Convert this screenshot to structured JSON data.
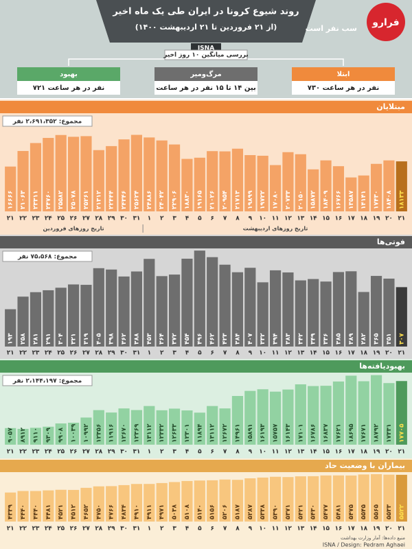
{
  "header": {
    "title": "روند شیوع کرونا در ایران طی یک ماه اخیر",
    "subtitle": "(از ۲۱ فروردین تا ۲۱ اردیبهشت ۱۴۰۰)",
    "source_tag": "ISNA",
    "note": "سب نفر است",
    "logo": "فرارو",
    "summary_title": "بررسی میانگین ۱۰ روز اخیر",
    "boxes": [
      {
        "label": "بهبود",
        "text": "۷۲۱ نفر در هر ساعت"
      },
      {
        "label": "مرگ‌ومیر",
        "text": "بین ۱۴ تا ۱۵ نفر در هر ساعت"
      },
      {
        "label": "ابتلا",
        "text": "۷۳۰ نفر در هر ساعت"
      }
    ]
  },
  "chart_data": [
    {
      "type": "bar",
      "title": "مبتلایان",
      "total": "مجموع: ۲،۶۹۱،۳۵۲ نفر",
      "categories": [
        "۲۱",
        "۲۲",
        "۲۳",
        "۲۴",
        "۲۵",
        "۲۶",
        "۲۷",
        "۲۸",
        "۲۹",
        "۳۰",
        "۳۱",
        "۱",
        "۲",
        "۳",
        "۴",
        "۵",
        "۶",
        "۷",
        "۸",
        "۹",
        "۱۰",
        "۱۱",
        "۱۲",
        "۱۳",
        "۱۴",
        "۱۵",
        "۱۶",
        "۱۷",
        "۱۸",
        "۱۹",
        "۲۰",
        "۲۱"
      ],
      "x_group_labels": [
        "تاریخ روزهای فروردین",
        "تاریخ روزهای اردیبهشت"
      ],
      "values": [
        16666,
        21063,
        23311,
        24760,
        25582,
        25078,
        25261,
        21312,
        22444,
        24346,
        25624,
        24886,
        24042,
        22906,
        18830,
        19165,
        21026,
        20954,
        21713,
        19899,
        19722,
        17080,
        20733,
        20150,
        15872,
        18409,
        16766,
        13587,
        14141,
        17430,
        18408,
        18133
      ],
      "value_labels": [
        "۱۶۶۶۶",
        "۲۱۰۶۳",
        "۲۳۳۱۱",
        "۲۴۷۶۰",
        "۲۵۵۸۲",
        "۲۵۰۷۸",
        "۲۵۲۶۱",
        "۲۱۳۱۲",
        "۲۲۴۴۴",
        "۲۴۳۴۶",
        "۲۵۶۲۴",
        "۲۴۸۸۶",
        "۲۴۰۴۲",
        "۲۲۹۰۶",
        "۱۸۸۳۰",
        "۱۹۱۶۵",
        "۲۱۰۲۶",
        "۲۰۹۵۴",
        "۲۱۷۱۳",
        "۱۹۸۹۹",
        "۱۹۷۲۲",
        "۱۷۰۸۰",
        "۲۰۷۳۳",
        "۲۰۱۵۰",
        "۱۵۸۷۲",
        "۱۸۴۰۹",
        "۱۶۷۶۶",
        "۱۳۵۸۷",
        "۱۴۱۴۱",
        "۱۷۴۳۰",
        "۱۸۴۰۸",
        "۱۸۱۳۳"
      ],
      "color": "#f4a366",
      "highlight_color": "#b86f1c",
      "label_color": "#ffffff",
      "background": "#fce3cc",
      "band_color": "#f08a3c",
      "ylim": [
        4000,
        26500
      ]
    },
    {
      "type": "bar",
      "title": "فوتی‌ها",
      "total": "مجموع: ۷۵،۵۶۸ نفر",
      "categories": [
        "۲۱",
        "۲۲",
        "۲۳",
        "۲۴",
        "۲۵",
        "۲۶",
        "۲۷",
        "۲۸",
        "۲۹",
        "۳۰",
        "۳۱",
        "۱",
        "۲",
        "۳",
        "۴",
        "۵",
        "۶",
        "۷",
        "۸",
        "۹",
        "۱۰",
        "۱۱",
        "۱۲",
        "۱۳",
        "۱۴",
        "۱۵",
        "۱۶",
        "۱۷",
        "۱۸",
        "۱۹",
        "۲۰",
        "۲۱"
      ],
      "values": [
        193,
        258,
        281,
        291,
        304,
        321,
        319,
        405,
        398,
        362,
        388,
        453,
        364,
        372,
        454,
        496,
        462,
        423,
        384,
        407,
        332,
        394,
        383,
        342,
        349,
        336,
        385,
        389,
        282,
        365,
        351,
        307
      ],
      "value_labels": [
        "۱۹۳",
        "۲۵۸",
        "۲۸۱",
        "۲۹۱",
        "۳۰۴",
        "۳۲۱",
        "۳۱۹",
        "۴۰۵",
        "۳۹۸",
        "۳۶۲",
        "۳۸۸",
        "۴۵۳",
        "۳۶۴",
        "۳۷۲",
        "۴۵۴",
        "۴۹۶",
        "۴۶۲",
        "۴۲۳",
        "۳۸۴",
        "۴۰۷",
        "۳۳۲",
        "۳۹۴",
        "۳۸۳",
        "۳۴۲",
        "۳۴۹",
        "۳۳۶",
        "۳۸۵",
        "۳۸۹",
        "۲۸۲",
        "۳۶۵",
        "۳۵۱",
        "۳۰۷"
      ],
      "color": "#6e6e6e",
      "highlight_color": "#3a3a3a",
      "label_color": "#ffffff",
      "background": "#d6d6d6",
      "band_color": "#5a5a5a",
      "ylim": [
        0,
        500
      ]
    },
    {
      "type": "bar",
      "title": "بهبودیافته‌ها",
      "total": "مجموع: ۲،۱۴۴،۱۹۷ نفر",
      "categories": [
        "۲۱",
        "۲۲",
        "۲۳",
        "۲۴",
        "۲۵",
        "۲۶",
        "۲۷",
        "۲۸",
        "۲۹",
        "۳۰",
        "۳۱",
        "۱",
        "۲",
        "۳",
        "۴",
        "۵",
        "۶",
        "۷",
        "۸",
        "۹",
        "۱۰",
        "۱۱",
        "۱۲",
        "۱۳",
        "۱۴",
        "۱۵",
        "۱۶",
        "۱۷",
        "۱۸",
        "۱۹",
        "۲۰",
        "۲۱"
      ],
      "values": [
        9057,
        8912,
        9110,
        9309,
        9908,
        10039,
        10992,
        12356,
        11916,
        12670,
        12369,
        13112,
        12332,
        12633,
        12301,
        11894,
        13112,
        12672,
        14961,
        15891,
        16193,
        15757,
        16143,
        17101,
        16786,
        16837,
        17621,
        18695,
        17671,
        18792,
        17331,
        17705
      ],
      "value_labels": [
        "۹۰۵۷",
        "۸۹۱۲",
        "۹۱۱۰",
        "۹۳۰۹",
        "۹۹۰۸",
        "۱۰۰۳۹",
        "۱۰۹۹۲",
        "۱۲۳۵۶",
        "۱۱۹۱۶",
        "۱۲۶۷۰",
        "۱۲۳۶۹",
        "۱۳۱۱۲",
        "۱۲۳۳۲",
        "۱۲۶۳۳",
        "۱۲۳۰۱",
        "۱۱۸۹۴",
        "۱۳۱۱۲",
        "۱۲۶۷۲",
        "۱۴۹۶۱",
        "۱۵۸۹۱",
        "۱۶۱۹۳",
        "۱۵۷۵۷",
        "۱۶۱۴۳",
        "۱۷۱۰۱",
        "۱۶۷۸۶",
        "۱۶۸۳۷",
        "۱۷۶۲۱",
        "۱۸۶۹۵",
        "۱۷۶۷۱",
        "۱۸۷۹۲",
        "۱۷۳۳۱",
        "۱۷۷۰۵"
      ],
      "color": "#92d2a2",
      "highlight_color": "#4e9a5c",
      "label_color": "#244d2c",
      "background": "#dcefe1",
      "band_color": "#4e9a5c",
      "ylim": [
        6000,
        19000
      ]
    },
    {
      "type": "bar",
      "title": "بیماران با وضعیت حاد",
      "categories": [
        "۲۱",
        "۲۲",
        "۲۳",
        "۲۴",
        "۲۵",
        "۲۶",
        "۲۷",
        "۲۸",
        "۲۹",
        "۳۰",
        "۳۱",
        "۱",
        "۲",
        "۳",
        "۴",
        "۵",
        "۶",
        "۷",
        "۸",
        "۹",
        "۱۰",
        "۱۱",
        "۱۲",
        "۱۳",
        "۱۴",
        "۱۵",
        "۱۶",
        "۱۷",
        "۱۸",
        "۱۹",
        "۲۰",
        "۲۱"
      ],
      "values": [
        4339,
        4440,
        4440,
        4481,
        4521,
        4512,
        4652,
        4750,
        4766,
        4834,
        4910,
        4911,
        4971,
        5038,
        5108,
        5140,
        5156,
        5206,
        5187,
        5287,
        5338,
        5390,
        5371,
        5421,
        5430,
        5477,
        5481,
        5475,
        5545,
        5565,
        5533,
        5522
      ],
      "value_labels": [
        "۴۳۳۹",
        "۴۴۴۰",
        "۴۴۴۰",
        "۴۴۸۱",
        "۴۵۲۱",
        "۴۵۱۲",
        "۴۶۵۲",
        "۴۷۵۰",
        "۴۷۶۶",
        "۴۸۳۴",
        "۴۹۱۰",
        "۴۹۱۱",
        "۴۹۷۱",
        "۵۰۳۸",
        "۵۱۰۸",
        "۵۱۴۰",
        "۵۱۵۶",
        "۵۲۰۶",
        "۵۱۸۷",
        "۵۲۸۷",
        "۵۳۳۸",
        "۵۳۹۰",
        "۵۳۷۱",
        "۵۴۲۱",
        "۵۴۳۰",
        "۵۴۷۷",
        "۵۴۸۱",
        "۵۴۷۵",
        "۵۵۴۵",
        "۵۵۶۵",
        "۵۵۳۳",
        "۵۵۲۲"
      ],
      "color": "#f8c67e",
      "highlight_color": "#d99a3c",
      "label_color": "#5a3a16",
      "background": "#fbeed7",
      "band_color": "#e6a94e",
      "ylim": [
        2400,
        5700
      ]
    }
  ],
  "footer": {
    "credit": "ISNA / Design: Pedram Aghaei",
    "source": "منبع داده‌ها: آمار وزارت بهداشت"
  }
}
